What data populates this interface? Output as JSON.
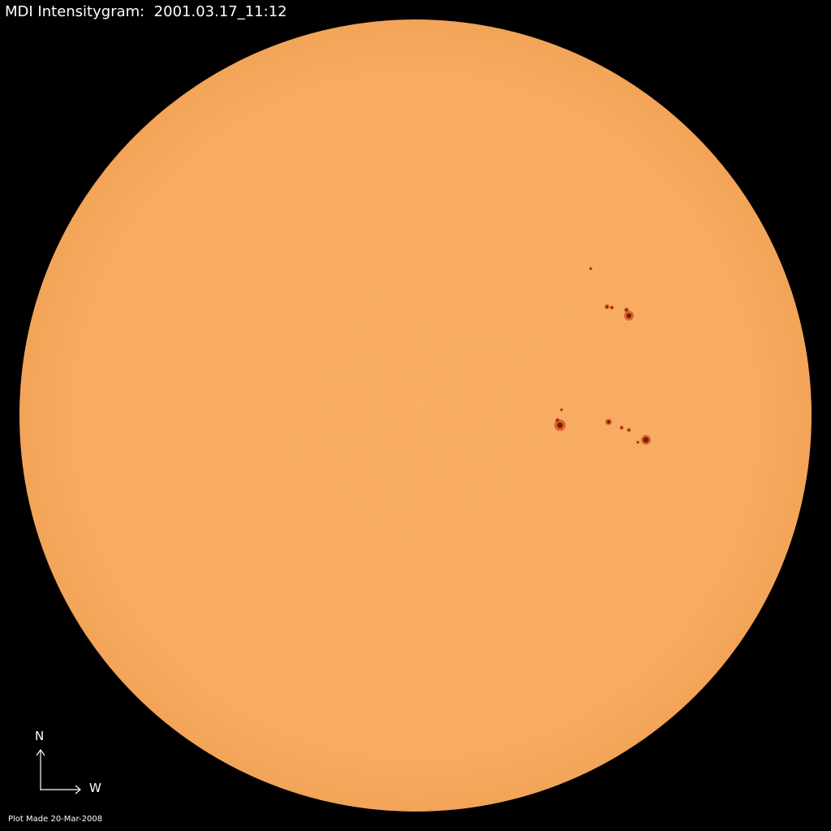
{
  "title": "MDI Intensitygram:  2001.03.17_11:12",
  "footer": "Plot Made 20-Mar-2008",
  "compass": {
    "north_label": "N",
    "west_label": "W"
  },
  "colors": {
    "background": "#000000",
    "photosphere": "#F9AA5E",
    "limb": "#F4A456",
    "sunspot_umbra": "#7A1A08",
    "sunspot_penumbra": "#D8652A",
    "text": "#FFFFFF"
  }
}
